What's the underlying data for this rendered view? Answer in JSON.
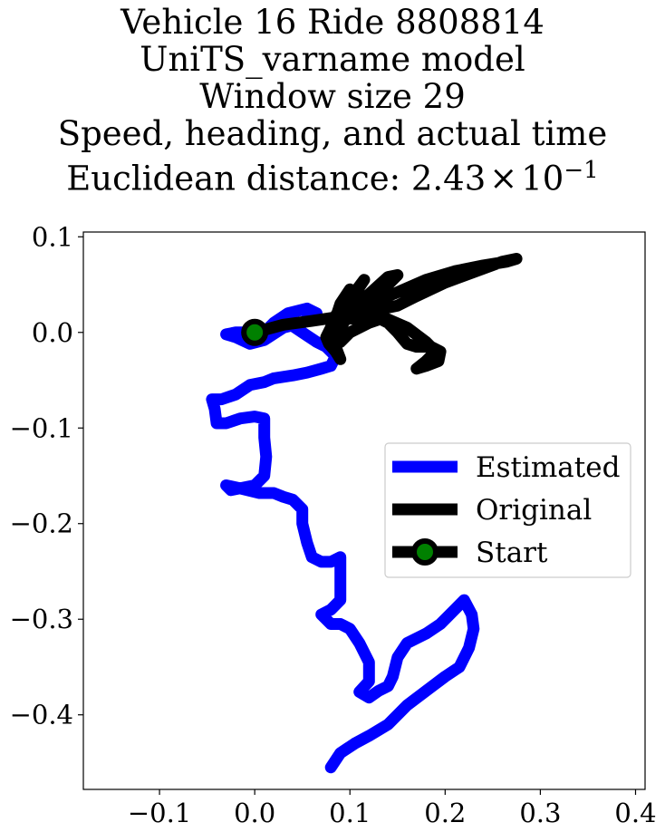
{
  "chart_data": {
    "type": "line",
    "title_lines": [
      "Vehicle 16 Ride 8808814",
      "UniTS_varname model",
      "Window size 29",
      "Speed, heading, and actual time"
    ],
    "title_last_prefix": "Euclidean distance: 2.43",
    "title_last_times": "×",
    "title_last_base": "10",
    "title_last_exp": "−1",
    "xlabel": "",
    "ylabel": "",
    "xlim": [
      -0.18,
      0.41
    ],
    "ylim": [
      -0.478,
      0.105
    ],
    "x_ticks": [
      -0.1,
      0.0,
      0.1,
      0.2,
      0.3,
      0.4
    ],
    "x_tick_labels": [
      "−0.1",
      "0.0",
      "0.1",
      "0.2",
      "0.3",
      "0.4"
    ],
    "y_ticks": [
      0.1,
      0.0,
      -0.1,
      -0.2,
      -0.3,
      -0.4
    ],
    "y_tick_labels": [
      "0.1",
      "0.0",
      "−0.1",
      "−0.2",
      "−0.3",
      "−0.4"
    ],
    "grid": false,
    "legend_position": "center-right",
    "series": [
      {
        "name": "Estimated",
        "color": "#0000ff",
        "points": [
          [
            0.08,
            -0.455
          ],
          [
            0.09,
            -0.44
          ],
          [
            0.105,
            -0.43
          ],
          [
            0.12,
            -0.422
          ],
          [
            0.14,
            -0.41
          ],
          [
            0.16,
            -0.39
          ],
          [
            0.18,
            -0.375
          ],
          [
            0.2,
            -0.36
          ],
          [
            0.215,
            -0.35
          ],
          [
            0.225,
            -0.33
          ],
          [
            0.23,
            -0.31
          ],
          [
            0.228,
            -0.295
          ],
          [
            0.22,
            -0.28
          ],
          [
            0.21,
            -0.29
          ],
          [
            0.195,
            -0.305
          ],
          [
            0.18,
            -0.315
          ],
          [
            0.17,
            -0.32
          ],
          [
            0.16,
            -0.325
          ],
          [
            0.15,
            -0.34
          ],
          [
            0.145,
            -0.36
          ],
          [
            0.14,
            -0.37
          ],
          [
            0.13,
            -0.375
          ],
          [
            0.12,
            -0.382
          ],
          [
            0.11,
            -0.376
          ],
          [
            0.12,
            -0.365
          ],
          [
            0.12,
            -0.345
          ],
          [
            0.11,
            -0.325
          ],
          [
            0.1,
            -0.31
          ],
          [
            0.09,
            -0.305
          ],
          [
            0.08,
            -0.305
          ],
          [
            0.07,
            -0.295
          ],
          [
            0.08,
            -0.29
          ],
          [
            0.09,
            -0.28
          ],
          [
            0.09,
            -0.25
          ],
          [
            0.09,
            -0.235
          ],
          [
            0.08,
            -0.24
          ],
          [
            0.07,
            -0.24
          ],
          [
            0.06,
            -0.235
          ],
          [
            0.055,
            -0.22
          ],
          [
            0.05,
            -0.2
          ],
          [
            0.05,
            -0.185
          ],
          [
            0.04,
            -0.175
          ],
          [
            0.03,
            -0.172
          ],
          [
            0.02,
            -0.168
          ],
          [
            0.005,
            -0.168
          ],
          [
            -0.02,
            -0.162
          ],
          [
            -0.03,
            -0.16
          ],
          [
            -0.025,
            -0.165
          ],
          [
            0.0,
            -0.16
          ],
          [
            0.01,
            -0.15
          ],
          [
            0.012,
            -0.13
          ],
          [
            0.01,
            -0.11
          ],
          [
            0.01,
            -0.09
          ],
          [
            0.0,
            -0.088
          ],
          [
            -0.015,
            -0.09
          ],
          [
            -0.03,
            -0.095
          ],
          [
            -0.04,
            -0.095
          ],
          [
            -0.042,
            -0.08
          ],
          [
            -0.045,
            -0.07
          ],
          [
            -0.035,
            -0.07
          ],
          [
            -0.02,
            -0.065
          ],
          [
            -0.005,
            -0.055
          ],
          [
            0.01,
            -0.052
          ],
          [
            0.02,
            -0.048
          ],
          [
            0.04,
            -0.045
          ],
          [
            0.055,
            -0.042
          ],
          [
            0.07,
            -0.038
          ],
          [
            0.08,
            -0.035
          ],
          [
            0.085,
            -0.025
          ],
          [
            0.075,
            -0.015
          ],
          [
            0.065,
            -0.01
          ],
          [
            0.05,
            0.0
          ],
          [
            0.035,
            0.01
          ],
          [
            0.02,
            0.01
          ],
          [
            0.015,
            0.005
          ],
          [
            0.02,
            0.01
          ],
          [
            0.035,
            0.02
          ],
          [
            0.055,
            0.025
          ],
          [
            0.065,
            0.02
          ],
          [
            0.05,
            0.01
          ],
          [
            0.03,
            0.005
          ],
          [
            0.01,
            -0.008
          ],
          [
            -0.005,
            -0.012
          ],
          [
            -0.02,
            -0.005
          ],
          [
            -0.03,
            -0.002
          ],
          [
            -0.02,
            0.0
          ],
          [
            0.0,
            0.0
          ]
        ]
      },
      {
        "name": "Original",
        "color": "#000000",
        "points": [
          [
            0.0,
            0.0
          ],
          [
            0.03,
            0.008
          ],
          [
            0.06,
            0.012
          ],
          [
            0.08,
            0.015
          ],
          [
            0.1,
            0.018
          ],
          [
            0.115,
            0.02
          ],
          [
            0.13,
            0.015
          ],
          [
            0.14,
            0.01
          ],
          [
            0.15,
            0.0
          ],
          [
            0.16,
            -0.012
          ],
          [
            0.17,
            -0.015
          ],
          [
            0.185,
            -0.015
          ],
          [
            0.195,
            -0.02
          ],
          [
            0.193,
            -0.03
          ],
          [
            0.18,
            -0.035
          ],
          [
            0.17,
            -0.038
          ],
          [
            0.18,
            -0.03
          ],
          [
            0.19,
            -0.02
          ],
          [
            0.18,
            -0.01
          ],
          [
            0.16,
            0.005
          ],
          [
            0.13,
            0.018
          ],
          [
            0.1,
            0.022
          ],
          [
            0.085,
            0.015
          ],
          [
            0.08,
            0.0
          ],
          [
            0.085,
            -0.015
          ],
          [
            0.09,
            -0.028
          ],
          [
            0.085,
            -0.02
          ],
          [
            0.08,
            0.0
          ],
          [
            0.09,
            0.02
          ],
          [
            0.1,
            0.035
          ],
          [
            0.115,
            0.055
          ],
          [
            0.105,
            0.04
          ],
          [
            0.09,
            0.025
          ],
          [
            0.08,
            0.01
          ],
          [
            0.1,
            0.025
          ],
          [
            0.12,
            0.04
          ],
          [
            0.14,
            0.058
          ],
          [
            0.15,
            0.06
          ],
          [
            0.14,
            0.05
          ],
          [
            0.12,
            0.038
          ],
          [
            0.1,
            0.025
          ],
          [
            0.12,
            0.03
          ],
          [
            0.15,
            0.042
          ],
          [
            0.18,
            0.055
          ],
          [
            0.21,
            0.064
          ],
          [
            0.24,
            0.07
          ],
          [
            0.265,
            0.074
          ],
          [
            0.275,
            0.077
          ],
          [
            0.26,
            0.074
          ],
          [
            0.23,
            0.063
          ],
          [
            0.2,
            0.052
          ],
          [
            0.17,
            0.038
          ],
          [
            0.15,
            0.028
          ],
          [
            0.12,
            0.022
          ],
          [
            0.1,
            0.02
          ],
          [
            0.085,
            0.015
          ],
          [
            0.09,
            0.03
          ],
          [
            0.1,
            0.045
          ],
          [
            0.11,
            0.04
          ],
          [
            0.1,
            0.02
          ],
          [
            0.09,
            0.005
          ],
          [
            0.085,
            -0.005
          ],
          [
            0.09,
            -0.01
          ],
          [
            0.1,
            0.0
          ],
          [
            0.12,
            0.01
          ],
          [
            0.135,
            0.015
          ],
          [
            0.12,
            0.01
          ],
          [
            0.1,
            0.015
          ],
          [
            0.09,
            0.01
          ],
          [
            0.08,
            0.005
          ],
          [
            0.075,
            -0.005
          ],
          [
            0.078,
            -0.012
          ],
          [
            0.085,
            -0.02
          ],
          [
            0.082,
            -0.01
          ],
          [
            0.079,
            0.0
          ]
        ]
      }
    ],
    "start_point": {
      "name": "Start",
      "x": 0.0,
      "y": 0.0,
      "marker_color": "#008000",
      "edge_color": "#000000"
    }
  }
}
